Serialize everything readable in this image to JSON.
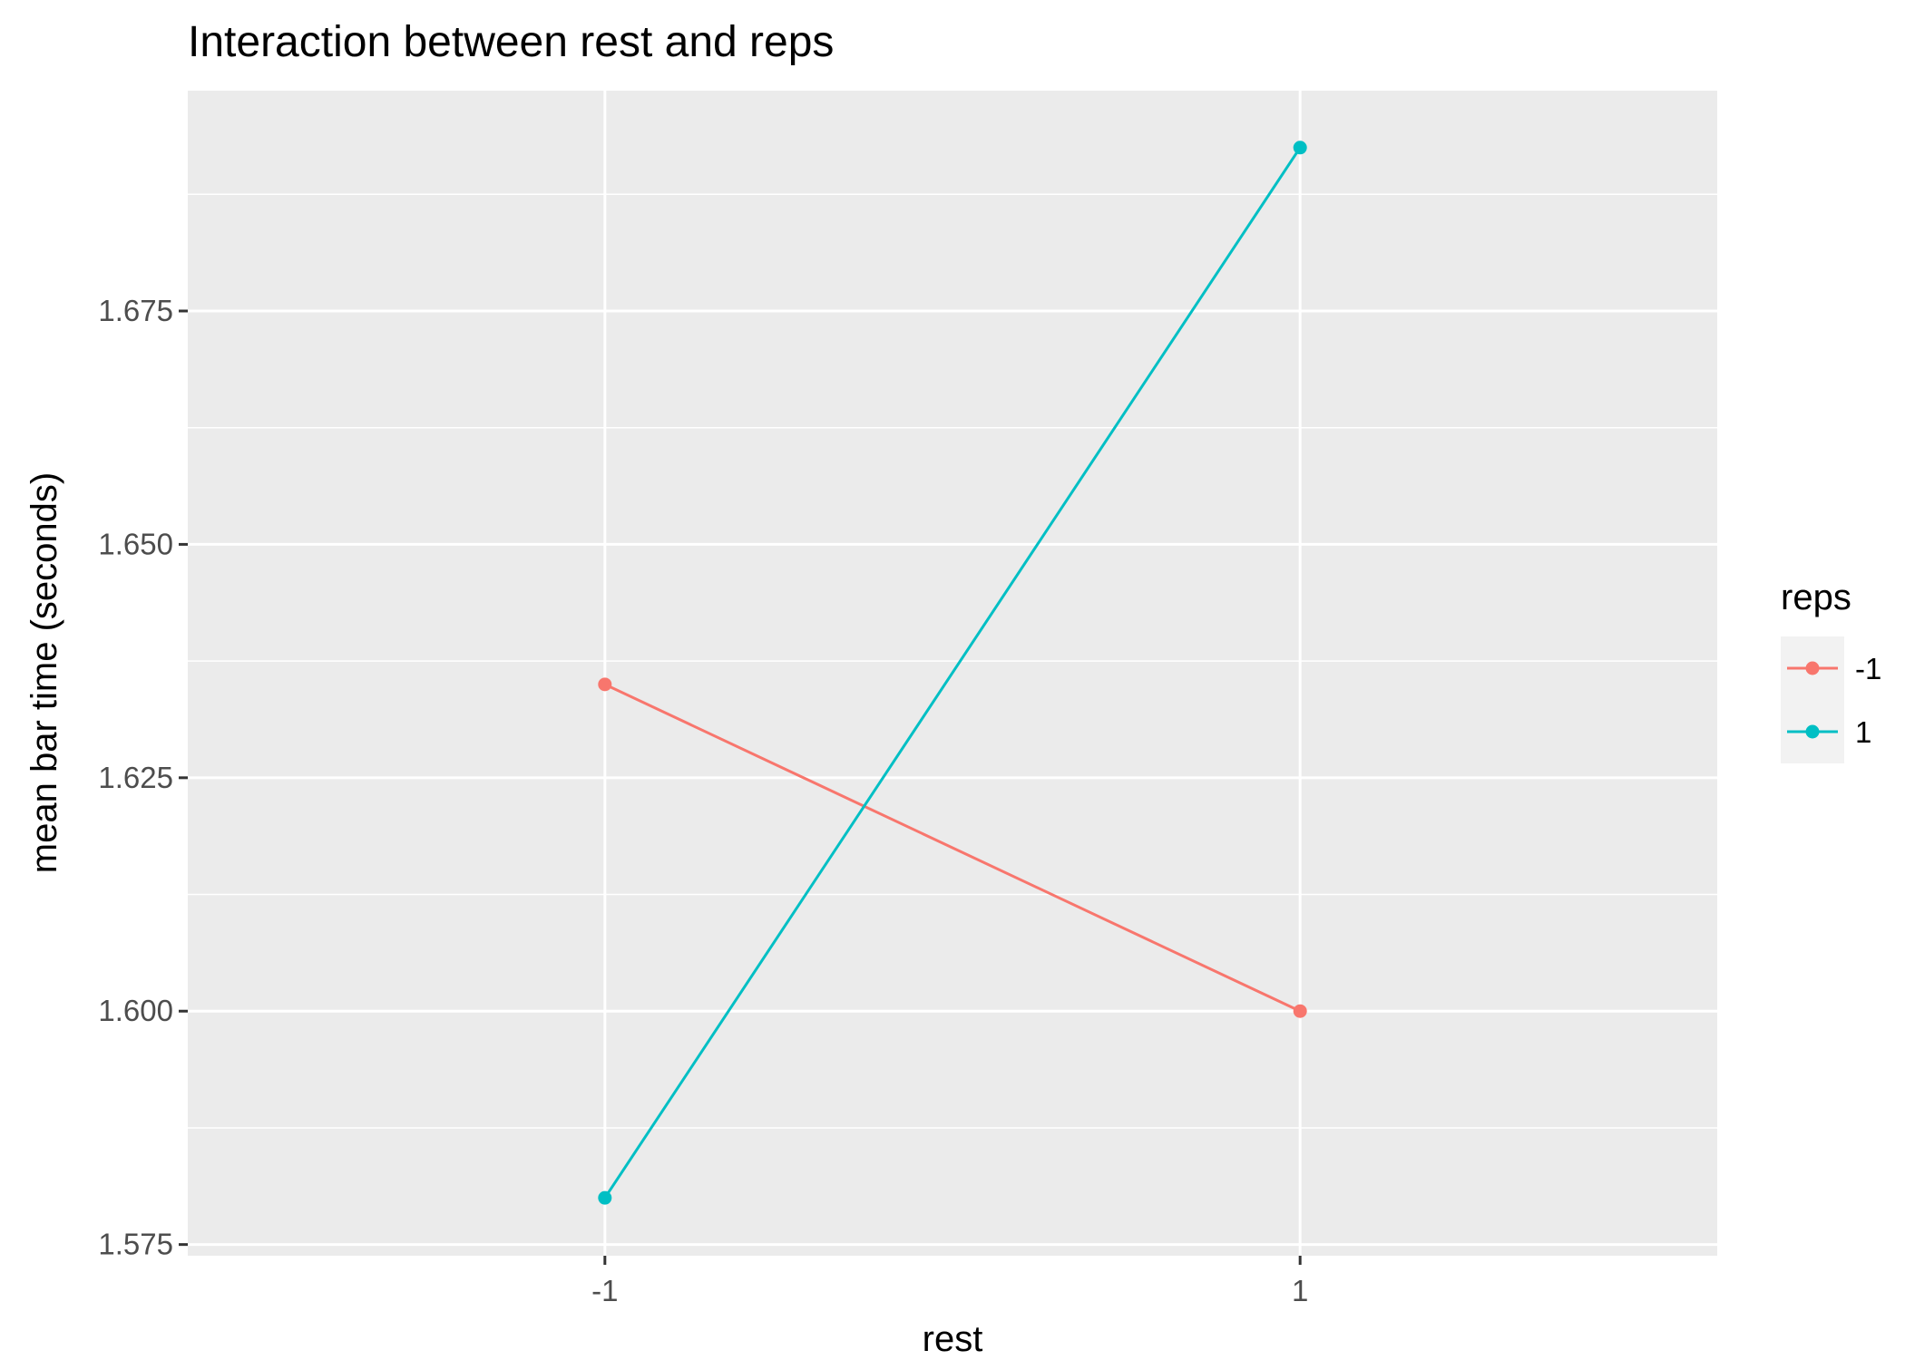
{
  "chart_data": {
    "type": "line",
    "title": "Interaction between rest and reps",
    "xlabel": "rest",
    "ylabel": "mean bar time (seconds)",
    "x_categories": [
      "-1",
      "1"
    ],
    "x_tick_labels": [
      "-1",
      "1"
    ],
    "y_ticks": [
      1.575,
      1.6,
      1.625,
      1.65,
      1.675
    ],
    "y_tick_labels": [
      "1.575",
      "1.600",
      "1.625",
      "1.650",
      "1.675"
    ],
    "ylim": [
      1.5738,
      1.6986
    ],
    "grid": true,
    "legend": {
      "title": "reps",
      "position": "right"
    },
    "series": [
      {
        "name": "-1",
        "color": "#F8766D",
        "values": [
          1.635,
          1.6
        ]
      },
      {
        "name": "1",
        "color": "#00BFC4",
        "values": [
          1.58,
          1.6925
        ]
      }
    ]
  }
}
